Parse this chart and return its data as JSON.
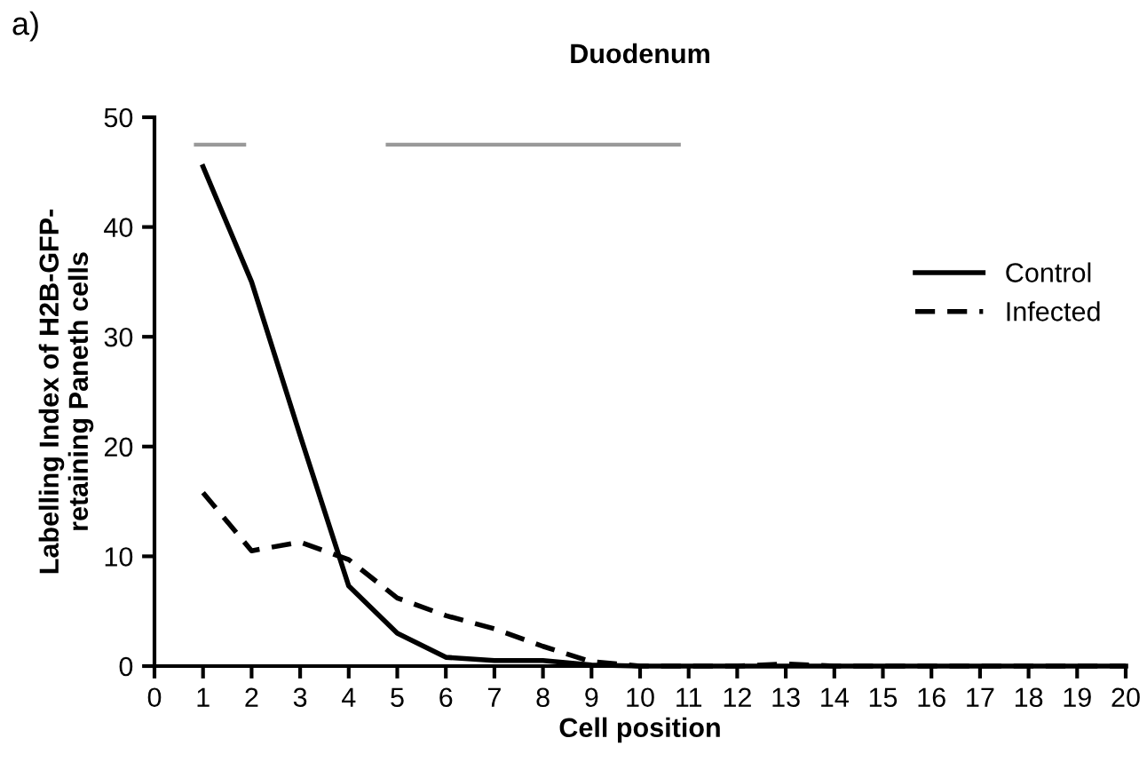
{
  "chart_data": {
    "type": "line",
    "title": "Duodenum",
    "xlabel": "Cell position",
    "ylabel": "Labelling Index of H2B-GFP-\nretaining Paneth cells",
    "annotations": [
      "a)"
    ],
    "x": [
      1,
      2,
      3,
      4,
      5,
      6,
      7,
      8,
      9,
      10,
      11,
      12,
      13,
      14,
      15,
      16,
      17,
      18,
      19,
      20
    ],
    "series": [
      {
        "name": "Control",
        "color": "#000000",
        "line_style": "solid",
        "values": [
          45.5,
          35,
          21,
          7.3,
          3.0,
          0.8,
          0.5,
          0.5,
          0.1,
          0,
          0,
          0,
          0,
          0,
          0,
          0,
          0,
          0,
          0,
          0
        ]
      },
      {
        "name": "Infected",
        "color": "#000000",
        "line_style": "dashed",
        "values": [
          15.8,
          10.5,
          11.3,
          9.7,
          6.2,
          4.6,
          3.4,
          1.8,
          0.4,
          0,
          0,
          0,
          0.2,
          0,
          0,
          0,
          0,
          0,
          0,
          0
        ]
      },
      {
        "color": "#999999",
        "line_style": "solid",
        "x": [
          0.85,
          1.85
        ],
        "values": [
          47.5,
          47.5
        ]
      },
      {
        "color": "#999999",
        "line_style": "solid",
        "x": [
          4.8,
          10.8
        ],
        "values": [
          47.5,
          47.5
        ]
      }
    ],
    "xlim": [
      0,
      20
    ],
    "xticks": [
      0,
      1,
      2,
      3,
      4,
      5,
      6,
      7,
      8,
      9,
      10,
      11,
      12,
      13,
      14,
      15,
      16,
      17,
      18,
      19,
      20
    ],
    "ylim": [
      0,
      50
    ],
    "yticks": [
      0,
      10,
      20,
      30,
      40,
      50
    ],
    "grid": false,
    "legend": "top right",
    "marker": "none"
  }
}
